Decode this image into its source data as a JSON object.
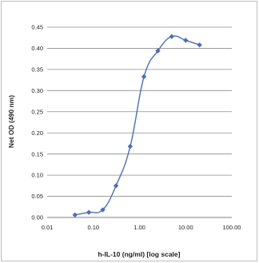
{
  "chart_data": {
    "type": "line",
    "title": "",
    "xlabel": "h-IL-10 (ng/ml) [log scale]",
    "ylabel": "Net OD (490 nm)",
    "x_scale": "log",
    "xlim": [
      0.01,
      100
    ],
    "ylim": [
      0,
      0.45
    ],
    "x_ticks": [
      0.01,
      0.1,
      1,
      10,
      100
    ],
    "x_tick_labels": [
      "0.01",
      "0.10",
      "1.00",
      "10.00",
      "100.00"
    ],
    "y_ticks": [
      0,
      0.05,
      0.1,
      0.15,
      0.2,
      0.25,
      0.3,
      0.35,
      0.4,
      0.45
    ],
    "y_tick_labels": [
      "0.00",
      "0.05",
      "0.10",
      "0.15",
      "0.20",
      "0.25",
      "0.30",
      "0.35",
      "0.40",
      "0.45"
    ],
    "grid": "horizontal",
    "legend": "none",
    "series": [
      {
        "color": "#4a6fb5",
        "marker": "diamond",
        "smooth": true,
        "x": [
          0.04,
          0.08,
          0.16,
          0.31,
          0.63,
          1.25,
          2.5,
          5,
          10,
          20
        ],
        "y": [
          0.006,
          0.012,
          0.018,
          0.075,
          0.168,
          0.333,
          0.394,
          0.428,
          0.419,
          0.408
        ]
      }
    ]
  }
}
